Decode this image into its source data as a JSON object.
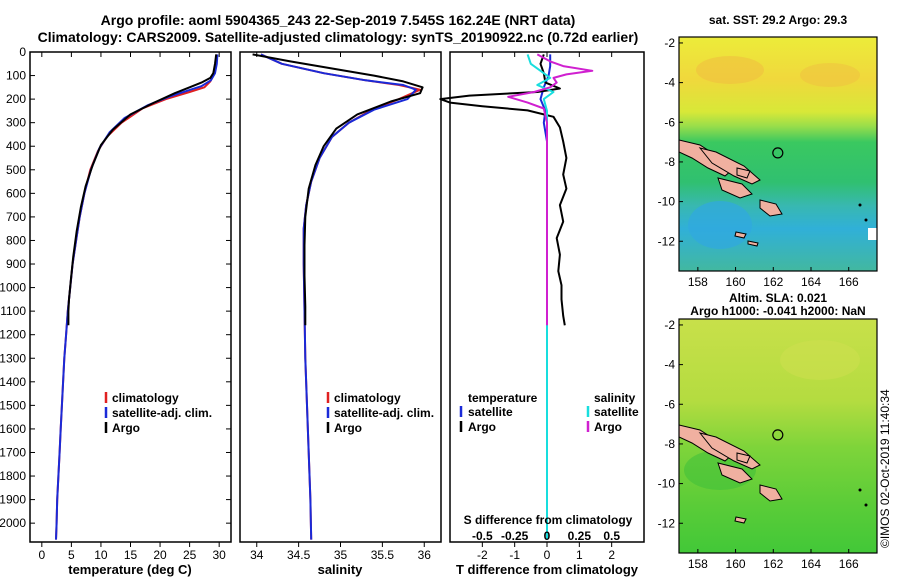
{
  "header": {
    "title_line1": "Argo profile: aoml 5904365_243 22-Sep-2019 7.545S 162.24E (NRT data)",
    "title_line2": "Climatology: CARS2009. Satellite-adjusted climatology: synTS_20190922.nc (0.72d earlier)"
  },
  "footer": {
    "stamp": "©IMOS 02-Oct-2019 11:40:34"
  },
  "colors": {
    "climatology": "#e02020",
    "satellite": "#1a2ad8",
    "argo": "#000000",
    "sat_salinity": "#18dede",
    "argo_salinity": "#d020d0"
  },
  "chart_data": [
    {
      "type": "line",
      "name": "temperature",
      "xlabel": "temperature (deg C)",
      "xlim": [
        -2,
        32
      ],
      "ylim": [
        2080,
        0
      ],
      "xticks": [
        0,
        5,
        10,
        15,
        20,
        25,
        30
      ],
      "yticks": [
        0,
        100,
        200,
        300,
        400,
        500,
        600,
        700,
        800,
        900,
        1000,
        1100,
        1200,
        1300,
        1400,
        1500,
        1600,
        1700,
        1800,
        1900,
        2000
      ],
      "legend": [
        "climatology",
        "satellite-adj. clim.",
        "Argo"
      ],
      "series": [
        {
          "name": "climatology",
          "color": "#e02020",
          "points": [
            [
              29.6,
              10
            ],
            [
              29.5,
              50
            ],
            [
              29.2,
              90
            ],
            [
              28.5,
              125
            ],
            [
              27.5,
              150
            ],
            [
              25,
              170
            ],
            [
              21,
              200
            ],
            [
              17,
              240
            ],
            [
              13.5,
              300
            ],
            [
              11,
              360
            ],
            [
              9.5,
              420
            ],
            [
              8.2,
              500
            ],
            [
              7.2,
              600
            ],
            [
              6.4,
              700
            ],
            [
              5.8,
              800
            ],
            [
              5.2,
              900
            ],
            [
              4.8,
              1000
            ],
            [
              4.4,
              1100
            ],
            [
              4.1,
              1200
            ],
            [
              3.8,
              1300
            ],
            [
              3.6,
              1400
            ],
            [
              3.4,
              1500
            ],
            [
              3.2,
              1600
            ],
            [
              3.0,
              1700
            ],
            [
              2.8,
              1800
            ],
            [
              2.6,
              1900
            ],
            [
              2.5,
              2000
            ],
            [
              2.4,
              2070
            ]
          ]
        },
        {
          "name": "satellite-adj. clim.",
          "color": "#1a2ad8",
          "points": [
            [
              29.7,
              10
            ],
            [
              29.6,
              50
            ],
            [
              29.3,
              90
            ],
            [
              28.6,
              120
            ],
            [
              27,
              145
            ],
            [
              24.5,
              165
            ],
            [
              21.5,
              190
            ],
            [
              18,
              225
            ],
            [
              14,
              280
            ],
            [
              11.5,
              340
            ],
            [
              9.7,
              410
            ],
            [
              8.3,
              500
            ],
            [
              7.2,
              600
            ],
            [
              6.4,
              700
            ],
            [
              5.8,
              800
            ],
            [
              5.2,
              900
            ],
            [
              4.8,
              1000
            ],
            [
              4.4,
              1100
            ],
            [
              4.1,
              1200
            ],
            [
              3.8,
              1300
            ],
            [
              3.6,
              1400
            ],
            [
              3.4,
              1500
            ],
            [
              3.2,
              1600
            ],
            [
              3.0,
              1700
            ],
            [
              2.8,
              1800
            ],
            [
              2.6,
              1900
            ],
            [
              2.5,
              2000
            ],
            [
              2.4,
              2070
            ]
          ]
        },
        {
          "name": "Argo",
          "color": "#000000",
          "points": [
            [
              29.5,
              10
            ],
            [
              29.3,
              50
            ],
            [
              29,
              90
            ],
            [
              28.5,
              110
            ],
            [
              27,
              130
            ],
            [
              25,
              150
            ],
            [
              22.5,
              175
            ],
            [
              19,
              215
            ],
            [
              15,
              265
            ],
            [
              12,
              330
            ],
            [
              10,
              395
            ],
            [
              8.6,
              480
            ],
            [
              7.4,
              570
            ],
            [
              6.6,
              660
            ],
            [
              5.9,
              760
            ],
            [
              5.3,
              870
            ],
            [
              4.9,
              970
            ],
            [
              4.6,
              1050
            ],
            [
              4.5,
              1100
            ],
            [
              4.5,
              1150
            ],
            [
              4.5,
              1160
            ]
          ]
        }
      ]
    },
    {
      "type": "line",
      "name": "salinity",
      "xlabel": "salinity",
      "xlim": [
        33.8,
        36.2
      ],
      "ylim": [
        2080,
        0
      ],
      "xticks": [
        34,
        34.5,
        35,
        35.5,
        36
      ],
      "legend": [
        "climatology",
        "satellite-adj. clim.",
        "Argo"
      ],
      "series": [
        {
          "name": "climatology",
          "color": "#e02020",
          "points": [
            [
              34.05,
              10
            ],
            [
              34.3,
              50
            ],
            [
              34.8,
              90
            ],
            [
              35.3,
              120
            ],
            [
              35.7,
              140
            ],
            [
              35.95,
              160
            ],
            [
              35.7,
              200
            ],
            [
              35.4,
              240
            ],
            [
              35.1,
              300
            ],
            [
              34.9,
              360
            ],
            [
              34.75,
              450
            ],
            [
              34.65,
              550
            ],
            [
              34.59,
              650
            ],
            [
              34.56,
              750
            ],
            [
              34.56,
              900
            ],
            [
              34.57,
              1100
            ],
            [
              34.58,
              1300
            ],
            [
              34.6,
              1500
            ],
            [
              34.62,
              1700
            ],
            [
              34.64,
              1900
            ],
            [
              34.65,
              2070
            ]
          ]
        },
        {
          "name": "satellite-adj. clim.",
          "color": "#1a2ad8",
          "points": [
            [
              34.05,
              10
            ],
            [
              34.3,
              50
            ],
            [
              34.8,
              90
            ],
            [
              35.3,
              120
            ],
            [
              35.75,
              140
            ],
            [
              35.9,
              160
            ],
            [
              35.8,
              200
            ],
            [
              35.4,
              245
            ],
            [
              35.1,
              300
            ],
            [
              34.9,
              360
            ],
            [
              34.75,
              450
            ],
            [
              34.65,
              550
            ],
            [
              34.59,
              650
            ],
            [
              34.56,
              750
            ],
            [
              34.56,
              900
            ],
            [
              34.57,
              1100
            ],
            [
              34.58,
              1300
            ],
            [
              34.6,
              1500
            ],
            [
              34.62,
              1700
            ],
            [
              34.64,
              1900
            ],
            [
              34.65,
              2070
            ]
          ]
        },
        {
          "name": "Argo",
          "color": "#000000",
          "points": [
            [
              33.95,
              10
            ],
            [
              34.4,
              40
            ],
            [
              34.9,
              70
            ],
            [
              35.4,
              100
            ],
            [
              35.75,
              125
            ],
            [
              35.98,
              150
            ],
            [
              35.95,
              175
            ],
            [
              35.6,
              210
            ],
            [
              35.2,
              265
            ],
            [
              34.95,
              325
            ],
            [
              34.8,
              400
            ],
            [
              34.7,
              480
            ],
            [
              34.62,
              580
            ],
            [
              34.58,
              700
            ],
            [
              34.57,
              820
            ],
            [
              34.57,
              950
            ],
            [
              34.58,
              1080
            ],
            [
              34.58,
              1150
            ],
            [
              34.58,
              1160
            ]
          ]
        }
      ]
    },
    {
      "type": "line",
      "name": "difference",
      "xlabel": "T difference from climatology",
      "xlabel2": "S difference from climatology",
      "xlim": [
        -3,
        3
      ],
      "ylim": [
        2080,
        0
      ],
      "xticks": [
        -2,
        -1,
        0,
        1,
        2
      ],
      "xticks_top": [
        "-0.5",
        "-0.25",
        "0",
        "0.25",
        "0.5"
      ],
      "legend_left_title": "temperature",
      "legend_left": [
        "satellite",
        "Argo"
      ],
      "legend_right_title": "salinity",
      "legend_right": [
        "satellite",
        "Argo"
      ],
      "series": [
        {
          "name": "T satellite",
          "color": "#1a2ad8",
          "points": [
            [
              0.1,
              10
            ],
            [
              0.1,
              60
            ],
            [
              0.05,
              100
            ],
            [
              -0.1,
              150
            ],
            [
              -0.2,
              200
            ],
            [
              -0.05,
              250
            ],
            [
              -0.1,
              300
            ],
            [
              0,
              380
            ],
            [
              0,
              500
            ],
            [
              0,
              700
            ],
            [
              0,
              900
            ],
            [
              0,
              1100
            ],
            [
              0,
              1300
            ],
            [
              0,
              1500
            ],
            [
              0,
              1700
            ],
            [
              0,
              1900
            ],
            [
              0,
              2070
            ]
          ]
        },
        {
          "name": "T Argo",
          "color": "#000000",
          "points": [
            [
              -0.1,
              10
            ],
            [
              -0.2,
              50
            ],
            [
              -0.1,
              90
            ],
            [
              -0.05,
              130
            ],
            [
              0.4,
              155
            ],
            [
              -0.3,
              170
            ],
            [
              -2.4,
              185
            ],
            [
              -3.3,
              200
            ],
            [
              -3,
              215
            ],
            [
              -2,
              230
            ],
            [
              -0.6,
              248
            ],
            [
              0.2,
              275
            ],
            [
              0.4,
              320
            ],
            [
              0.5,
              380
            ],
            [
              0.6,
              450
            ],
            [
              0.5,
              520
            ],
            [
              0.6,
              580
            ],
            [
              0.4,
              650
            ],
            [
              0.5,
              720
            ],
            [
              0.3,
              790
            ],
            [
              0.4,
              860
            ],
            [
              0.35,
              930
            ],
            [
              0.45,
              990
            ],
            [
              0.45,
              1050
            ],
            [
              0.5,
              1120
            ],
            [
              0.55,
              1160
            ]
          ]
        },
        {
          "name": "S satellite",
          "color": "#18dede",
          "points": [
            [
              -0.6,
              10
            ],
            [
              -0.5,
              50
            ],
            [
              -0.2,
              80
            ],
            [
              0.1,
              110
            ],
            [
              -0.3,
              140
            ],
            [
              0.2,
              170
            ],
            [
              -0.1,
              200
            ],
            [
              0,
              250
            ],
            [
              0,
              400
            ],
            [
              0,
              600
            ],
            [
              0,
              800
            ],
            [
              0,
              1000
            ],
            [
              0,
              1200
            ],
            [
              0,
              1400
            ],
            [
              0,
              1600
            ],
            [
              0,
              1800
            ],
            [
              0,
              2000
            ],
            [
              0,
              2070
            ]
          ]
        },
        {
          "name": "S Argo",
          "color": "#d020d0",
          "points": [
            [
              -0.3,
              10
            ],
            [
              0.1,
              40
            ],
            [
              0.5,
              60
            ],
            [
              1.4,
              80
            ],
            [
              0.6,
              95
            ],
            [
              0.2,
              110
            ],
            [
              0.3,
              130
            ],
            [
              0.1,
              150
            ],
            [
              -0.4,
              170
            ],
            [
              -1.2,
              190
            ],
            [
              -0.6,
              215
            ],
            [
              -0.1,
              240
            ],
            [
              0,
              300
            ],
            [
              0,
              400
            ],
            [
              0,
              600
            ],
            [
              0,
              800
            ],
            [
              0,
              1000
            ],
            [
              0,
              1150
            ],
            [
              0,
              1160
            ]
          ]
        }
      ]
    },
    {
      "type": "heatmap",
      "name": "SST map",
      "title": "sat. SST: 29.2 Argo: 29.3",
      "xlim": [
        157,
        167.5
      ],
      "ylim": [
        -13.5,
        -1.7
      ],
      "xticks": [
        158,
        160,
        162,
        164,
        166
      ],
      "yticks": [
        -2,
        -4,
        -6,
        -8,
        -10,
        -12
      ],
      "argo_position": [
        162.24,
        -7.545
      ]
    },
    {
      "type": "heatmap",
      "name": "SLA map",
      "title": "Altim. SLA: 0.021",
      "subtitle": "Argo h1000: -0.041 h2000: NaN",
      "xlim": [
        157,
        167.5
      ],
      "ylim": [
        -13.5,
        -1.7
      ],
      "xticks": [
        158,
        160,
        162,
        164,
        166
      ],
      "yticks": [
        -2,
        -4,
        -6,
        -8,
        -10,
        -12
      ],
      "argo_position": [
        162.24,
        -7.545
      ]
    }
  ]
}
